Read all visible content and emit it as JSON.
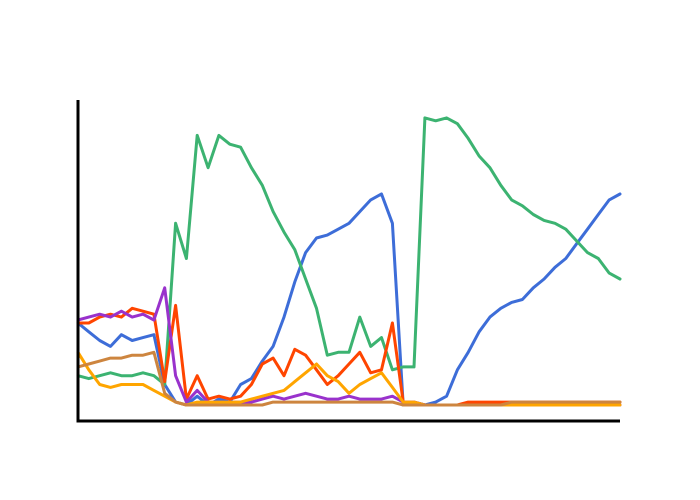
{
  "chart_data": {
    "type": "line",
    "title": "",
    "xlabel": "",
    "ylabel": "",
    "xlim": [
      0,
      100
    ],
    "ylim": [
      0,
      1
    ],
    "grid": false,
    "legend": "none",
    "x": [
      0,
      2,
      4,
      6,
      8,
      10,
      12,
      14,
      16,
      18,
      20,
      22,
      24,
      26,
      28,
      30,
      32,
      34,
      36,
      38,
      40,
      42,
      44,
      46,
      48,
      50,
      52,
      54,
      56,
      58,
      60,
      62,
      64,
      66,
      68,
      70,
      72,
      74,
      76,
      78,
      80,
      82,
      84,
      86,
      88,
      90,
      92,
      94,
      96,
      98,
      100
    ],
    "series": [
      {
        "color": "#3d6dd8",
        "values": [
          0.28,
          0.25,
          0.22,
          0.2,
          0.24,
          0.22,
          0.23,
          0.24,
          0.07,
          0.01,
          0.0,
          0.03,
          0.0,
          0.02,
          0.01,
          0.07,
          0.09,
          0.15,
          0.2,
          0.3,
          0.42,
          0.52,
          0.57,
          0.58,
          0.6,
          0.62,
          0.66,
          0.7,
          0.72,
          0.62,
          0.0,
          0.01,
          0.0,
          0.01,
          0.03,
          0.12,
          0.18,
          0.25,
          0.3,
          0.33,
          0.35,
          0.36,
          0.4,
          0.43,
          0.47,
          0.5,
          0.55,
          0.6,
          0.65,
          0.7,
          0.72
        ]
      },
      {
        "color": "#3cb371",
        "values": [
          0.1,
          0.09,
          0.1,
          0.11,
          0.1,
          0.1,
          0.11,
          0.1,
          0.07,
          0.62,
          0.5,
          0.92,
          0.81,
          0.92,
          0.89,
          0.88,
          0.81,
          0.75,
          0.66,
          0.59,
          0.53,
          0.43,
          0.33,
          0.17,
          0.18,
          0.18,
          0.3,
          0.2,
          0.23,
          0.12,
          0.13,
          0.13,
          0.98,
          0.97,
          0.98,
          0.96,
          0.91,
          0.85,
          0.81,
          0.75,
          0.7,
          0.68,
          0.65,
          0.63,
          0.62,
          0.6,
          0.56,
          0.52,
          0.5,
          0.45,
          0.43
        ]
      },
      {
        "color": "#ff4500",
        "values": [
          0.28,
          0.28,
          0.3,
          0.31,
          0.3,
          0.33,
          0.32,
          0.31,
          0.08,
          0.34,
          0.02,
          0.1,
          0.02,
          0.03,
          0.02,
          0.03,
          0.07,
          0.14,
          0.16,
          0.1,
          0.19,
          0.17,
          0.12,
          0.07,
          0.1,
          0.14,
          0.18,
          0.11,
          0.12,
          0.28,
          0.01,
          0.01,
          0.0,
          0.0,
          0.0,
          0.0,
          0.01,
          0.01,
          0.01,
          0.01,
          0.01,
          0.01,
          0.01,
          0.01,
          0.01,
          0.01,
          0.01,
          0.01,
          0.01,
          0.01,
          0.01
        ]
      },
      {
        "color": "#9932cc",
        "values": [
          0.29,
          0.3,
          0.31,
          0.3,
          0.32,
          0.3,
          0.31,
          0.29,
          0.4,
          0.1,
          0.01,
          0.05,
          0.01,
          0.01,
          0.01,
          0.01,
          0.01,
          0.02,
          0.03,
          0.02,
          0.03,
          0.04,
          0.03,
          0.02,
          0.02,
          0.03,
          0.02,
          0.02,
          0.02,
          0.03,
          0.01,
          0.01,
          0.0,
          0.0,
          0.0,
          0.0,
          0.0,
          0.0,
          0.0,
          0.0,
          0.0,
          0.0,
          0.0,
          0.0,
          0.0,
          0.0,
          0.0,
          0.0,
          0.0,
          0.0,
          0.0
        ]
      },
      {
        "color": "#ffa500",
        "values": [
          0.18,
          0.12,
          0.07,
          0.06,
          0.07,
          0.07,
          0.07,
          0.05,
          0.03,
          0.01,
          0.0,
          0.01,
          0.01,
          0.01,
          0.01,
          0.01,
          0.02,
          0.03,
          0.04,
          0.05,
          0.08,
          0.11,
          0.14,
          0.1,
          0.08,
          0.04,
          0.07,
          0.09,
          0.11,
          0.06,
          0.01,
          0.01,
          0.0,
          0.0,
          0.0,
          0.0,
          0.0,
          0.0,
          0.0,
          0.0,
          0.0,
          0.0,
          0.0,
          0.0,
          0.0,
          0.0,
          0.0,
          0.0,
          0.0,
          0.0,
          0.0
        ]
      },
      {
        "color": "#cd853f",
        "values": [
          0.13,
          0.14,
          0.15,
          0.16,
          0.16,
          0.17,
          0.17,
          0.18,
          0.04,
          0.01,
          0.0,
          0.0,
          0.0,
          0.0,
          0.0,
          0.0,
          0.0,
          0.0,
          0.01,
          0.01,
          0.01,
          0.01,
          0.01,
          0.01,
          0.01,
          0.01,
          0.01,
          0.01,
          0.01,
          0.01,
          0.0,
          0.0,
          0.0,
          0.0,
          0.0,
          0.0,
          0.0,
          0.0,
          0.0,
          0.0,
          0.01,
          0.01,
          0.01,
          0.01,
          0.01,
          0.01,
          0.01,
          0.01,
          0.01,
          0.01,
          0.01
        ]
      }
    ]
  }
}
